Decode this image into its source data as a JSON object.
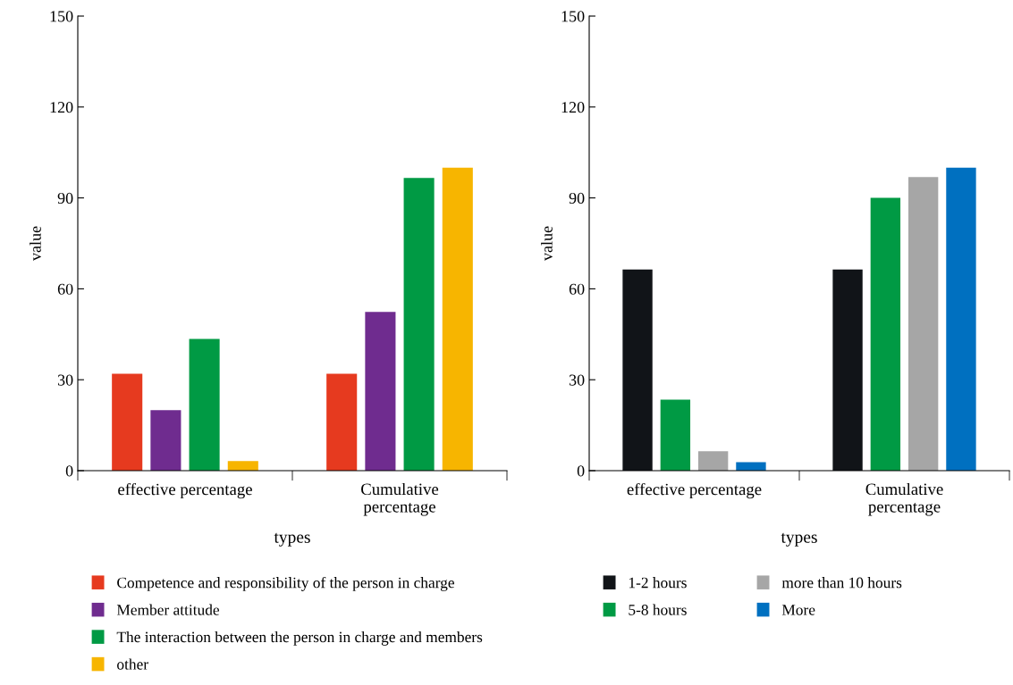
{
  "chart_data": [
    {
      "type": "bar",
      "xlabel": "types",
      "ylabel": "value",
      "categories": [
        "effective percentage",
        "Cumulative percentage"
      ],
      "ylim": [
        0,
        150
      ],
      "yticks": [
        0,
        30,
        60,
        90,
        120,
        150
      ],
      "grid": false,
      "legend": "bottom",
      "series": [
        {
          "name": "Competence and responsibility of the person in charge",
          "color": "#e63a1f",
          "values": [
            32,
            32
          ]
        },
        {
          "name": "Member attitude",
          "color": "#6f2c8f",
          "values": [
            20,
            52.4
          ]
        },
        {
          "name": "The interaction between the person in charge and members",
          "color": "#009a44",
          "values": [
            43.5,
            96.6
          ]
        },
        {
          "name": "other",
          "color": "#f7b500",
          "values": [
            3.2,
            100
          ]
        }
      ]
    },
    {
      "type": "bar",
      "xlabel": "types",
      "ylabel": "value",
      "categories": [
        "effective percentage",
        "Cumulative percentage"
      ],
      "ylim": [
        0,
        150
      ],
      "yticks": [
        0,
        30,
        60,
        90,
        120,
        150
      ],
      "grid": false,
      "legend": "bottom",
      "series": [
        {
          "name": "1-2 hours",
          "color": "#111418",
          "values": [
            66.4,
            66.4
          ]
        },
        {
          "name": "5-8 hours",
          "color": "#009a44",
          "values": [
            23.4,
            90
          ]
        },
        {
          "name": "more than 10 hours",
          "color": "#a6a6a6",
          "values": [
            6.4,
            96.9
          ]
        },
        {
          "name": "More",
          "color": "#0070c0",
          "values": [
            2.8,
            100
          ]
        }
      ]
    }
  ]
}
